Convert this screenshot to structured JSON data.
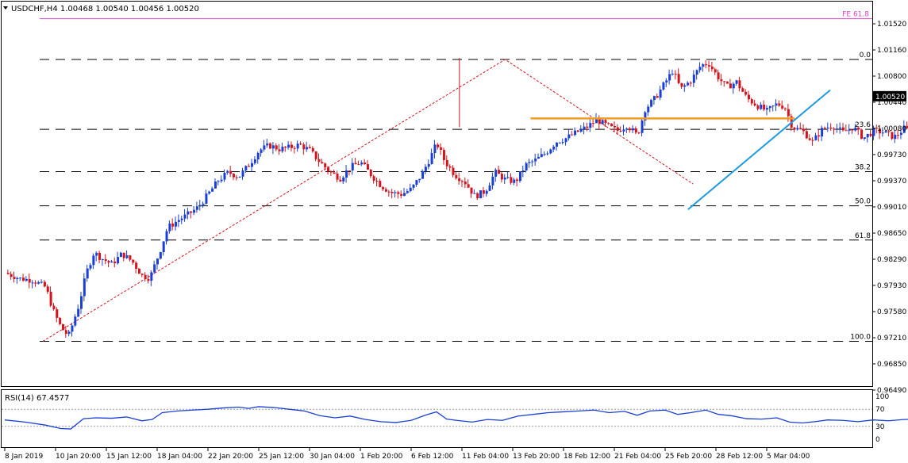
{
  "header": {
    "symbol_line": "USDCHF,H4  1.00468 1.00540 1.00456 1.00520",
    "rsi_label": "RSI(14) 67.4577"
  },
  "colors": {
    "bull": "#1a3fd6",
    "bear": "#d4141d",
    "fib_dash": "#000000",
    "fe_line": "#d946c9",
    "resistance": "#f29b1f",
    "trendline": "#1e9be0",
    "zigzag": "#d4141d",
    "rsi_line": "#1a3fd6",
    "price_tag_bg": "#000000"
  },
  "chart_data": [
    {
      "type": "candlestick",
      "symbol": "USDCHF",
      "timeframe": "H4",
      "ohlc": {
        "open": 1.00468,
        "high": 1.0054,
        "low": 1.00456,
        "close": 1.0052
      },
      "ylim": [
        0.9649,
        1.0152
      ],
      "y_tick_labels": [
        "1.01520",
        "1.01160",
        "1.00800",
        "1.00440",
        "1.00080",
        "0.99730",
        "0.99370",
        "0.99010",
        "0.98650",
        "0.98290",
        "0.97930",
        "0.97580",
        "0.97210",
        "0.96850",
        "0.96490"
      ],
      "x_tick_labels": [
        "8 Jan 2019",
        "10 Jan 20:00",
        "15 Jan 12:00",
        "18 Jan 04:00",
        "22 Jan 20:00",
        "25 Jan 12:00",
        "30 Jan 04:00",
        "1 Feb 20:00",
        "6 Feb 12:00",
        "11 Feb 04:00",
        "13 Feb 20:00",
        "18 Feb 12:00",
        "21 Feb 04:00",
        "25 Feb 20:00",
        "28 Feb 12:00",
        "5 Mar 04:00"
      ],
      "current_price": "1.00520",
      "fib_levels": [
        {
          "label": "0.0",
          "value": 1.0103
        },
        {
          "label": "23.6",
          "value": 1.0007
        },
        {
          "label": "38.2",
          "value": 0.9949
        },
        {
          "label": "50.0",
          "value": 0.9902
        },
        {
          "label": "61.8",
          "value": 0.9855
        },
        {
          "label": "100.0",
          "value": 0.9716
        }
      ],
      "fe_level": {
        "label": "FE 61.8",
        "value": 1.0159
      },
      "resistance_line": {
        "value": 1.0022,
        "from": "13 Feb 20:00",
        "to": "5 Mar 04:00"
      },
      "support_trendline": {
        "from": {
          "time": "25 Feb 20:00",
          "value": 0.9897
        },
        "to": {
          "time": "5 Mar 04:00",
          "value": 1.0061
        }
      },
      "zigzag": [
        {
          "time": "8 Jan 2019",
          "value": 0.9716
        },
        {
          "time": "13 Feb 20:00",
          "value": 1.0103
        },
        {
          "time": "28 Feb 12:00",
          "value": 0.9932
        }
      ],
      "close_path": [
        {
          "t": 0.0,
          "v": 0.981
        },
        {
          "t": 0.3,
          "v": 0.9802
        },
        {
          "t": 0.55,
          "v": 0.98
        },
        {
          "t": 0.8,
          "v": 0.979
        },
        {
          "t": 0.95,
          "v": 0.9758
        },
        {
          "t": 1.1,
          "v": 0.9735
        },
        {
          "t": 1.25,
          "v": 0.9723
        },
        {
          "t": 1.45,
          "v": 0.9765
        },
        {
          "t": 1.6,
          "v": 0.981
        },
        {
          "t": 1.75,
          "v": 0.9838
        },
        {
          "t": 1.9,
          "v": 0.983
        },
        {
          "t": 2.1,
          "v": 0.9822
        },
        {
          "t": 2.3,
          "v": 0.9836
        },
        {
          "t": 2.5,
          "v": 0.9826
        },
        {
          "t": 2.7,
          "v": 0.9806
        },
        {
          "t": 2.85,
          "v": 0.9803
        },
        {
          "t": 3.05,
          "v": 0.984
        },
        {
          "t": 3.2,
          "v": 0.9872
        },
        {
          "t": 3.4,
          "v": 0.9882
        },
        {
          "t": 3.6,
          "v": 0.989
        },
        {
          "t": 3.8,
          "v": 0.99
        },
        {
          "t": 4.0,
          "v": 0.9918
        },
        {
          "t": 4.2,
          "v": 0.9937
        },
        {
          "t": 4.4,
          "v": 0.9948
        },
        {
          "t": 4.6,
          "v": 0.9942
        },
        {
          "t": 4.8,
          "v": 0.9958
        },
        {
          "t": 5.0,
          "v": 0.9978
        },
        {
          "t": 5.2,
          "v": 0.9985
        },
        {
          "t": 5.4,
          "v": 0.998
        },
        {
          "t": 5.6,
          "v": 0.9982
        },
        {
          "t": 5.8,
          "v": 0.9986
        },
        {
          "t": 6.0,
          "v": 0.9978
        },
        {
          "t": 6.2,
          "v": 0.9962
        },
        {
          "t": 6.4,
          "v": 0.9948
        },
        {
          "t": 6.6,
          "v": 0.994
        },
        {
          "t": 6.8,
          "v": 0.9955
        },
        {
          "t": 7.0,
          "v": 0.9962
        },
        {
          "t": 7.2,
          "v": 0.9945
        },
        {
          "t": 7.4,
          "v": 0.993
        },
        {
          "t": 7.6,
          "v": 0.992
        },
        {
          "t": 7.8,
          "v": 0.9918
        },
        {
          "t": 8.0,
          "v": 0.9925
        },
        {
          "t": 8.2,
          "v": 0.9945
        },
        {
          "t": 8.35,
          "v": 0.9965
        },
        {
          "t": 8.5,
          "v": 0.9988
        },
        {
          "t": 8.65,
          "v": 0.9964
        },
        {
          "t": 8.85,
          "v": 0.9945
        },
        {
          "t": 9.05,
          "v": 0.9935
        },
        {
          "t": 9.25,
          "v": 0.9915
        },
        {
          "t": 9.45,
          "v": 0.9922
        },
        {
          "t": 9.65,
          "v": 0.9948
        },
        {
          "t": 9.85,
          "v": 0.9938
        },
        {
          "t": 10.05,
          "v": 0.9935
        },
        {
          "t": 10.25,
          "v": 0.9958
        },
        {
          "t": 10.45,
          "v": 0.9965
        },
        {
          "t": 10.65,
          "v": 0.9975
        },
        {
          "t": 10.85,
          "v": 0.999
        },
        {
          "t": 11.05,
          "v": 0.9995
        },
        {
          "t": 11.25,
          "v": 1.0003
        },
        {
          "t": 11.45,
          "v": 1.001
        },
        {
          "t": 11.65,
          "v": 1.002
        },
        {
          "t": 11.85,
          "v": 1.0012
        },
        {
          "t": 12.05,
          "v": 1.0005
        },
        {
          "t": 12.25,
          "v": 1.0013
        },
        {
          "t": 12.45,
          "v": 0.9998
        },
        {
          "t": 12.6,
          "v": 1.0035
        },
        {
          "t": 12.8,
          "v": 1.005
        },
        {
          "t": 13.0,
          "v": 1.0072
        },
        {
          "t": 13.15,
          "v": 1.0088
        },
        {
          "t": 13.3,
          "v": 1.0062
        },
        {
          "t": 13.5,
          "v": 1.0074
        },
        {
          "t": 13.7,
          "v": 1.0095
        },
        {
          "t": 13.85,
          "v": 1.0098
        },
        {
          "t": 14.0,
          "v": 1.0082
        },
        {
          "t": 14.2,
          "v": 1.0065
        },
        {
          "t": 14.4,
          "v": 1.0072
        },
        {
          "t": 14.6,
          "v": 1.005
        },
        {
          "t": 14.8,
          "v": 1.004
        },
        {
          "t": 15.0,
          "v": 1.0032
        },
        {
          "t": 15.2,
          "v": 1.0042
        },
        {
          "t": 15.35,
          "v": 1.0038
        },
        {
          "t": 15.5,
          "v": 1.001
        },
        {
          "t": 15.7,
          "v": 1.0005
        },
        {
          "t": 15.9,
          "v": 0.999
        },
        {
          "t": 16.1,
          "v": 1.0008
        },
        {
          "t": 16.3,
          "v": 1.0012
        },
        {
          "t": 16.5,
          "v": 1.0003
        },
        {
          "t": 16.7,
          "v": 1.001
        },
        {
          "t": 16.9,
          "v": 0.9995
        },
        {
          "t": 17.1,
          "v": 1.0005
        },
        {
          "t": 17.3,
          "v": 1.0003
        },
        {
          "t": 17.5,
          "v": 0.9996
        },
        {
          "t": 17.7,
          "v": 1.0008
        },
        {
          "t": 17.9,
          "v": 1.0003
        },
        {
          "t": 18.1,
          "v": 0.9998
        },
        {
          "t": 18.3,
          "v": 1.001
        },
        {
          "t": 18.5,
          "v": 0.998
        },
        {
          "t": 18.65,
          "v": 0.9945
        },
        {
          "t": 18.8,
          "v": 0.9965
        },
        {
          "t": 18.95,
          "v": 0.9978
        },
        {
          "t": 19.1,
          "v": 0.9985
        },
        {
          "t": 19.3,
          "v": 0.998
        },
        {
          "t": 19.5,
          "v": 0.9992
        },
        {
          "t": 19.7,
          "v": 0.9988
        },
        {
          "t": 19.85,
          "v": 0.9998
        },
        {
          "t": 20.0,
          "v": 1.001
        },
        {
          "t": 20.1,
          "v": 1.005
        },
        {
          "t": 20.25,
          "v": 1.0046
        },
        {
          "t": 20.4,
          "v": 1.0052
        }
      ],
      "rsi": {
        "label": "RSI(14) 67.4577",
        "ylim": [
          0,
          100
        ],
        "levels": [
          30,
          70
        ],
        "tick_labels": [
          "100",
          "70",
          "30",
          "0"
        ],
        "last_value": 67.4577,
        "values": [
          {
            "t": 0.0,
            "v": 45
          },
          {
            "t": 0.4,
            "v": 40
          },
          {
            "t": 0.8,
            "v": 33
          },
          {
            "t": 1.1,
            "v": 25
          },
          {
            "t": 1.3,
            "v": 24
          },
          {
            "t": 1.55,
            "v": 48
          },
          {
            "t": 1.8,
            "v": 50
          },
          {
            "t": 2.1,
            "v": 49
          },
          {
            "t": 2.4,
            "v": 52
          },
          {
            "t": 2.7,
            "v": 43
          },
          {
            "t": 2.9,
            "v": 46
          },
          {
            "t": 3.1,
            "v": 62
          },
          {
            "t": 3.4,
            "v": 66
          },
          {
            "t": 3.7,
            "v": 68
          },
          {
            "t": 4.0,
            "v": 70
          },
          {
            "t": 4.3,
            "v": 73
          },
          {
            "t": 4.6,
            "v": 75
          },
          {
            "t": 4.8,
            "v": 72
          },
          {
            "t": 5.0,
            "v": 76
          },
          {
            "t": 5.3,
            "v": 74
          },
          {
            "t": 5.6,
            "v": 70
          },
          {
            "t": 5.9,
            "v": 66
          },
          {
            "t": 6.2,
            "v": 55
          },
          {
            "t": 6.5,
            "v": 50
          },
          {
            "t": 6.8,
            "v": 54
          },
          {
            "t": 7.1,
            "v": 46
          },
          {
            "t": 7.4,
            "v": 41
          },
          {
            "t": 7.7,
            "v": 39
          },
          {
            "t": 8.0,
            "v": 44
          },
          {
            "t": 8.3,
            "v": 57
          },
          {
            "t": 8.5,
            "v": 64
          },
          {
            "t": 8.7,
            "v": 47
          },
          {
            "t": 8.9,
            "v": 44
          },
          {
            "t": 9.2,
            "v": 40
          },
          {
            "t": 9.5,
            "v": 46
          },
          {
            "t": 9.8,
            "v": 44
          },
          {
            "t": 10.1,
            "v": 54
          },
          {
            "t": 10.4,
            "v": 58
          },
          {
            "t": 10.7,
            "v": 62
          },
          {
            "t": 11.0,
            "v": 64
          },
          {
            "t": 11.3,
            "v": 66
          },
          {
            "t": 11.6,
            "v": 68
          },
          {
            "t": 11.9,
            "v": 62
          },
          {
            "t": 12.2,
            "v": 65
          },
          {
            "t": 12.45,
            "v": 56
          },
          {
            "t": 12.7,
            "v": 66
          },
          {
            "t": 13.0,
            "v": 68
          },
          {
            "t": 13.25,
            "v": 58
          },
          {
            "t": 13.5,
            "v": 62
          },
          {
            "t": 13.8,
            "v": 68
          },
          {
            "t": 14.05,
            "v": 58
          },
          {
            "t": 14.3,
            "v": 55
          },
          {
            "t": 14.6,
            "v": 48
          },
          {
            "t": 14.9,
            "v": 47
          },
          {
            "t": 15.2,
            "v": 50
          },
          {
            "t": 15.45,
            "v": 40
          },
          {
            "t": 15.7,
            "v": 38
          },
          {
            "t": 15.95,
            "v": 41
          },
          {
            "t": 16.2,
            "v": 45
          },
          {
            "t": 16.5,
            "v": 44
          },
          {
            "t": 16.8,
            "v": 41
          },
          {
            "t": 17.1,
            "v": 45
          },
          {
            "t": 17.4,
            "v": 43
          },
          {
            "t": 17.7,
            "v": 46
          },
          {
            "t": 18.0,
            "v": 47
          },
          {
            "t": 18.3,
            "v": 45
          },
          {
            "t": 18.55,
            "v": 36
          },
          {
            "t": 18.75,
            "v": 45
          },
          {
            "t": 19.0,
            "v": 54
          },
          {
            "t": 19.2,
            "v": 47
          },
          {
            "t": 19.5,
            "v": 52
          },
          {
            "t": 19.8,
            "v": 55
          },
          {
            "t": 20.0,
            "v": 58
          },
          {
            "t": 20.12,
            "v": 70
          },
          {
            "t": 20.25,
            "v": 67
          },
          {
            "t": 20.4,
            "v": 67.4577
          }
        ]
      }
    }
  ]
}
